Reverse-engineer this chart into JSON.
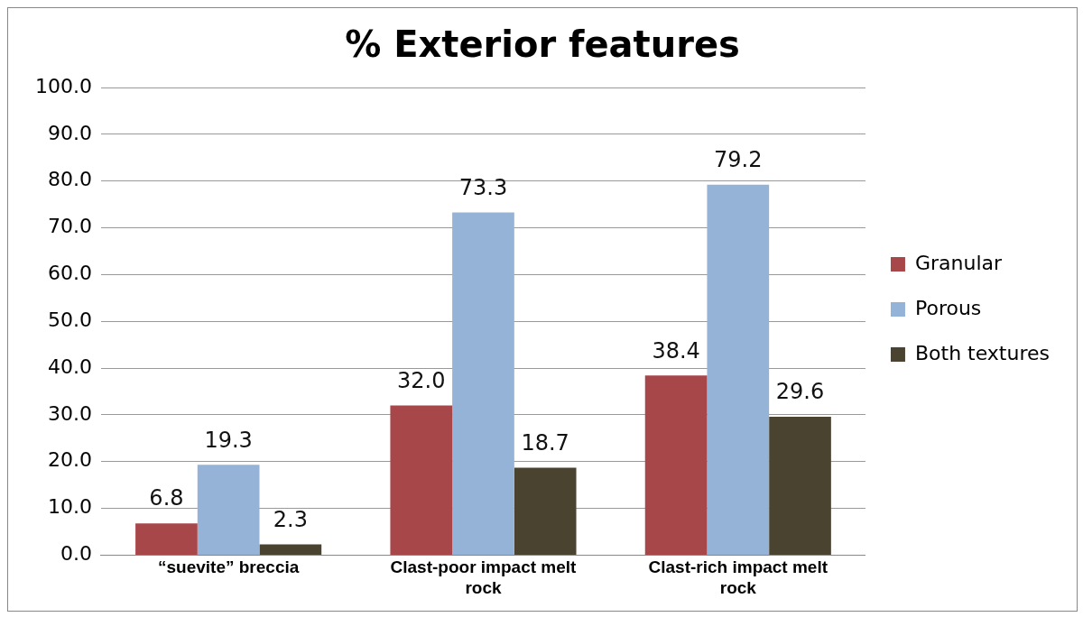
{
  "chart_data": {
    "type": "bar",
    "title": "% Exterior features",
    "categories": [
      "“suevite” breccia",
      "Clast-poor impact melt rock",
      "Clast-rich impact melt rock"
    ],
    "series": [
      {
        "name": "Granular",
        "color": "#a8474a",
        "values": [
          6.8,
          32.0,
          38.4
        ],
        "value_labels": [
          "6.8",
          "32.0",
          "38.4"
        ]
      },
      {
        "name": "Porous",
        "color": "#95b3d7",
        "values": [
          19.3,
          73.3,
          79.2
        ],
        "value_labels": [
          "19.3",
          "73.3",
          "79.2"
        ]
      },
      {
        "name": "Both textures",
        "color": "#4a4330",
        "values": [
          2.3,
          18.7,
          29.6
        ],
        "value_labels": [
          "2.3",
          "18.7",
          "29.6"
        ]
      }
    ],
    "ylim": [
      0,
      100
    ],
    "yticks": [
      {
        "value": 0,
        "label": "0.0"
      },
      {
        "value": 10,
        "label": "10.0"
      },
      {
        "value": 20,
        "label": "20.0"
      },
      {
        "value": 30,
        "label": "30.0"
      },
      {
        "value": 40,
        "label": "40.0"
      },
      {
        "value": 50,
        "label": "50.0"
      },
      {
        "value": 60,
        "label": "60.0"
      },
      {
        "value": 70,
        "label": "70.0"
      },
      {
        "value": 80,
        "label": "80.0"
      },
      {
        "value": 90,
        "label": "90.0"
      },
      {
        "value": 100,
        "label": "100.0"
      }
    ],
    "grid": "y",
    "legend": "right"
  }
}
